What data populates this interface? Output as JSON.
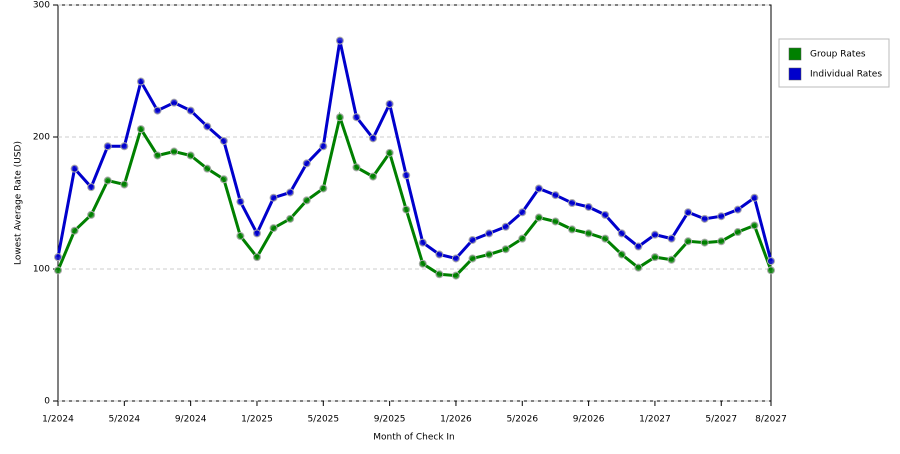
{
  "chart_data": {
    "type": "line",
    "x_label": "Month of Check In",
    "y_label": "Lowest Average Rate (USD)",
    "categories": [
      "1/2024",
      null,
      null,
      null,
      "5/2024",
      null,
      null,
      null,
      "9/2024",
      null,
      null,
      null,
      "1/2025",
      null,
      null,
      null,
      "5/2025",
      null,
      null,
      null,
      "9/2025",
      null,
      null,
      null,
      "1/2026",
      null,
      null,
      null,
      "5/2026",
      null,
      null,
      null,
      "9/2026",
      null,
      null,
      null,
      "1/2027",
      null,
      null,
      null,
      "5/2027",
      null,
      null,
      "8/2027"
    ],
    "series": [
      {
        "name": "Group Rates",
        "color": "#008000",
        "values": [
          99,
          129,
          141,
          167,
          164,
          206,
          186,
          189,
          186,
          176,
          168,
          125,
          109,
          131,
          138,
          152,
          161,
          215,
          177,
          170,
          188,
          145,
          104,
          96,
          95,
          108,
          111,
          115,
          123,
          139,
          136,
          130,
          127,
          123,
          111,
          101,
          109,
          107,
          121,
          120,
          121,
          128,
          133,
          99
        ]
      },
      {
        "name": "Individual Rates",
        "color": "#0000cc",
        "values": [
          109,
          176,
          162,
          193,
          193,
          242,
          220,
          226,
          220,
          208,
          197,
          151,
          127,
          154,
          158,
          180,
          193,
          273,
          215,
          199,
          225,
          171,
          120,
          111,
          108,
          122,
          127,
          132,
          143,
          161,
          156,
          150,
          147,
          141,
          127,
          117,
          126,
          123,
          143,
          138,
          140,
          145,
          154,
          106
        ]
      }
    ],
    "ylim": [
      0,
      300
    ],
    "yticks": [
      0,
      100,
      200,
      300
    ],
    "grid": true,
    "legend": "right"
  }
}
